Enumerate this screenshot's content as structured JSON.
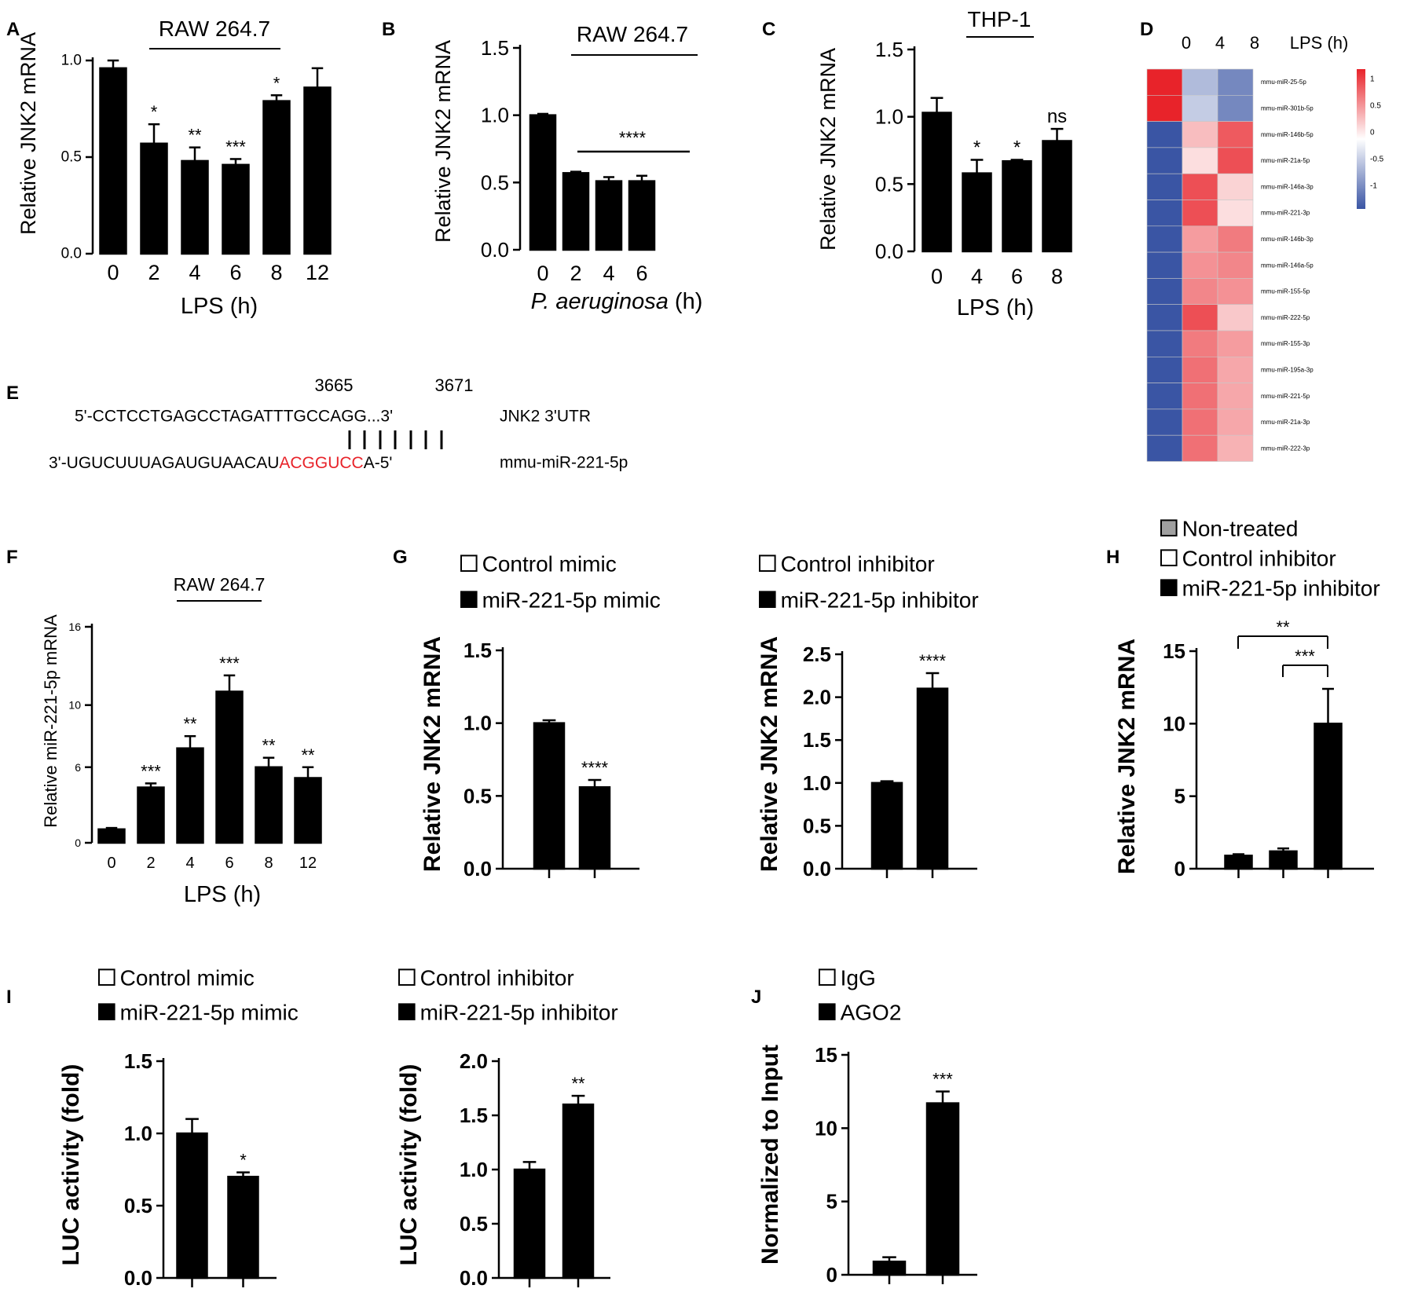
{
  "panels": {
    "A": {
      "letter": "A",
      "title": "RAW 264.7",
      "title_underline": true,
      "ylabel": "Relative  JNK2 mRNA",
      "xlabel": "LPS (h)",
      "ylim": [
        0,
        1.0
      ],
      "ticks": [
        "0.0",
        "0.5",
        "1.0"
      ],
      "tick_values": [
        0,
        0.5,
        1.0
      ],
      "bold": false
    },
    "B": {
      "letter": "B",
      "title": "RAW 264.7",
      "title_underline": true,
      "ylabel": "Relative  JNK2 mRNA",
      "xlabel_italic": "P. aeruginosa",
      "xlabel_rest": " (h)",
      "ylim": [
        0,
        1.5
      ],
      "ticks": [
        "0.0",
        "0.5",
        "1.0",
        "1.5"
      ],
      "tick_values": [
        0,
        0.5,
        1.0,
        1.5
      ],
      "sig_bracket": "****"
    },
    "C": {
      "letter": "C",
      "title": "THP-1",
      "title_underline": true,
      "ylabel": "Relative  JNK2 mRNA",
      "xlabel": "LPS (h)",
      "ylim": [
        0,
        1.5
      ],
      "ticks": [
        "0.0",
        "0.5",
        "1.0",
        "1.5"
      ],
      "tick_values": [
        0,
        0.5,
        1.0,
        1.5
      ]
    },
    "D": {
      "letter": "D",
      "col_labels": [
        "0",
        "4",
        "8",
        "LPS  (h)"
      ],
      "rows": [
        "mmu-miR-25-5p",
        "mmu-miR-301b-5p",
        "mmu-miR-146b-5p",
        "mmu-miR-21a-5p",
        "mmu-miR-146a-3p",
        "mmu-miR-221-3p",
        "mmu-miR-146b-3p",
        "mmu-miR-146a-5p",
        "mmu-miR-155-5p",
        "mmu-miR-222-5p",
        "mmu-miR-155-3p",
        "mmu-miR-195a-3p",
        "mmu-miR-221-5p",
        "mmu-miR-21a-3p",
        "mmu-miR-222-3p"
      ],
      "values": [
        [
          1,
          -0.4,
          -0.7
        ],
        [
          1,
          -0.3,
          -0.7
        ],
        [
          -1,
          0.3,
          0.75
        ],
        [
          -1,
          0.15,
          0.8
        ],
        [
          -1,
          0.8,
          0.2
        ],
        [
          -1,
          0.8,
          0.15
        ],
        [
          -1,
          0.45,
          0.6
        ],
        [
          -1,
          0.5,
          0.55
        ],
        [
          -1,
          0.55,
          0.5
        ],
        [
          -1,
          0.8,
          0.25
        ],
        [
          -1,
          0.6,
          0.45
        ],
        [
          -1,
          0.65,
          0.4
        ],
        [
          -1,
          0.65,
          0.4
        ],
        [
          -1,
          0.65,
          0.4
        ],
        [
          -1,
          0.65,
          0.35
        ]
      ],
      "scale_labels": [
        "1",
        "0.5",
        "0",
        "-0.5",
        "-1"
      ],
      "color_high": "#e8232a",
      "color_mid": "#ffffff",
      "color_low": "#3a55a4"
    },
    "E": {
      "letter": "E",
      "pos_left": "3665",
      "pos_right": "3671",
      "utr_seq": "5'-CCTCCTGAGCCTAGATTTGCCAGG...3'",
      "utr_label": "JNK2   3'UTR",
      "mir_prefix": "3'-UGUCUUUAGAUGUAACAU",
      "mir_seed": "ACGGUCC",
      "mir_suffix": "A-5'",
      "mir_label": "mmu-miR-221-5p",
      "seed_color": "#e8232a"
    },
    "F": {
      "letter": "F",
      "title": "RAW 264.7",
      "title_underline": true,
      "ylabel": "Relative  miR-221-5p  mRNA",
      "xlabel": "LPS (h)",
      "ylim": [
        0,
        16
      ],
      "ticks": [
        "0",
        "6",
        "10",
        "16"
      ],
      "tick_values": [
        0,
        5.6,
        10.2,
        16
      ]
    },
    "G": {
      "letter": "G",
      "ylabel": "Relative JNK2 mRNA",
      "left": {
        "legend": [
          "Control mimic",
          "miR-221-5p  mimic"
        ],
        "ylim": [
          0,
          1.5
        ],
        "ticks": [
          "0.0",
          "0.5",
          "1.0",
          "1.5"
        ],
        "tick_values": [
          0,
          0.5,
          1.0,
          1.5
        ]
      },
      "right": {
        "legend": [
          "Control inhibitor",
          "miR-221-5p  inhibitor"
        ],
        "ylim": [
          0,
          2.5
        ],
        "ticks": [
          "0.0",
          "0.5",
          "1.0",
          "1.5",
          "2.0",
          "2.5"
        ],
        "tick_values": [
          0,
          0.5,
          1.0,
          1.5,
          2.0,
          2.5
        ]
      }
    },
    "H": {
      "letter": "H",
      "ylabel": "Relative JNK2 mRNA",
      "legend": [
        "Non-treated",
        "Control inhibitor",
        "miR-221-5p  inhibitor"
      ],
      "ylim": [
        0,
        15
      ],
      "ticks": [
        "0",
        "5",
        "10",
        "15"
      ],
      "tick_values": [
        0,
        5,
        10,
        15
      ],
      "brackets": [
        "**",
        "***"
      ]
    },
    "I": {
      "letter": "I",
      "ylabel": "LUC activity (fold)",
      "left": {
        "legend": [
          "Control mimic",
          "miR-221-5p  mimic"
        ],
        "ylim": [
          0,
          1.5
        ],
        "ticks": [
          "0.0",
          "0.5",
          "1.0",
          "1.5"
        ],
        "tick_values": [
          0,
          0.5,
          1.0,
          1.5
        ]
      },
      "right": {
        "legend": [
          "Control inhibitor",
          "miR-221-5p  inhibitor"
        ],
        "ylim": [
          0,
          2.0
        ],
        "ticks": [
          "0.0",
          "0.5",
          "1.0",
          "1.5",
          "2.0"
        ],
        "tick_values": [
          0,
          0.5,
          1.0,
          1.5,
          2.0
        ]
      }
    },
    "J": {
      "letter": "J",
      "ylabel": "Normalized to Input",
      "legend": [
        "IgG",
        "AGO2"
      ],
      "ylim": [
        0,
        15
      ],
      "ticks": [
        "0",
        "5",
        "10",
        "15"
      ],
      "tick_values": [
        0,
        5,
        10,
        15
      ]
    }
  },
  "chart_data": [
    {
      "id": "A",
      "type": "bar",
      "categories": [
        "0",
        "2",
        "4",
        "6",
        "8",
        "12"
      ],
      "values": [
        0.96,
        0.57,
        0.48,
        0.46,
        0.79,
        0.86
      ],
      "errors": [
        0.04,
        0.1,
        0.07,
        0.03,
        0.03,
        0.1
      ],
      "sig": [
        "",
        "*",
        "**",
        "***",
        "*",
        ""
      ],
      "title": "RAW 264.7",
      "xlabel": "LPS (h)",
      "ylabel": "Relative  JNK2 mRNA",
      "ylim": [
        0,
        1.0
      ]
    },
    {
      "id": "B",
      "type": "bar",
      "categories": [
        "0",
        "2",
        "4",
        "6"
      ],
      "values": [
        1.0,
        0.57,
        0.51,
        0.51
      ],
      "errors": [
        0.01,
        0.01,
        0.03,
        0.04
      ],
      "sig": [
        "",
        "",
        "",
        ""
      ],
      "title": "RAW 264.7",
      "xlabel": "P. aeruginosa (h)",
      "ylabel": "Relative  JNK2 mRNA",
      "ylim": [
        0,
        1.5
      ]
    },
    {
      "id": "C",
      "type": "bar",
      "categories": [
        "0",
        "4",
        "6",
        "8"
      ],
      "values": [
        1.03,
        0.58,
        0.67,
        0.82
      ],
      "errors": [
        0.11,
        0.1,
        0.01,
        0.09
      ],
      "sig": [
        "",
        "*",
        "*",
        "ns"
      ],
      "title": "THP-1",
      "xlabel": "LPS (h)",
      "ylabel": "Relative  JNK2 mRNA",
      "ylim": [
        0,
        1.5
      ]
    },
    {
      "id": "D",
      "type": "heatmap",
      "columns": [
        "0",
        "4",
        "8"
      ],
      "rows": [
        "mmu-miR-25-5p",
        "mmu-miR-301b-5p",
        "mmu-miR-146b-5p",
        "mmu-miR-21a-5p",
        "mmu-miR-146a-3p",
        "mmu-miR-221-3p",
        "mmu-miR-146b-3p",
        "mmu-miR-146a-5p",
        "mmu-miR-155-5p",
        "mmu-miR-222-5p",
        "mmu-miR-155-3p",
        "mmu-miR-195a-3p",
        "mmu-miR-221-5p",
        "mmu-miR-21a-3p",
        "mmu-miR-222-3p"
      ],
      "range": [
        -1,
        1
      ]
    },
    {
      "id": "F",
      "type": "bar",
      "categories": [
        "0",
        "2",
        "4",
        "6",
        "8",
        "12"
      ],
      "values": [
        1.0,
        4.1,
        7.0,
        11.2,
        5.6,
        4.8
      ],
      "errors": [
        0.1,
        0.3,
        0.9,
        1.2,
        0.7,
        0.8
      ],
      "sig": [
        "",
        "***",
        "**",
        "***",
        "**",
        "**"
      ],
      "title": "RAW 264.7",
      "xlabel": "LPS (h)",
      "ylabel": "Relative  miR-221-5p  mRNA",
      "ylim": [
        0,
        16
      ]
    },
    {
      "id": "G-left",
      "type": "bar",
      "categories": [
        "Control mimic",
        "miR-221-5p  mimic"
      ],
      "values": [
        1.0,
        0.56
      ],
      "errors": [
        0.02,
        0.05
      ],
      "sig": [
        "",
        "****"
      ],
      "ylabel": "Relative JNK2 mRNA",
      "ylim": [
        0,
        1.5
      ]
    },
    {
      "id": "G-right",
      "type": "bar",
      "categories": [
        "Control inhibitor",
        "miR-221-5p  inhibitor"
      ],
      "values": [
        1.0,
        2.1
      ],
      "errors": [
        0.02,
        0.18
      ],
      "sig": [
        "",
        "****"
      ],
      "ylabel": "Relative JNK2 mRNA",
      "ylim": [
        0,
        2.5
      ]
    },
    {
      "id": "H",
      "type": "bar",
      "categories": [
        "Non-treated",
        "Control inhibitor",
        "miR-221-5p  inhibitor"
      ],
      "values": [
        0.9,
        1.2,
        10.0
      ],
      "errors": [
        0.1,
        0.2,
        2.4
      ],
      "sig": [
        "",
        "",
        ""
      ],
      "ylabel": "Relative JNK2 mRNA",
      "ylim": [
        0,
        15
      ]
    },
    {
      "id": "I-left",
      "type": "bar",
      "categories": [
        "Control mimic",
        "miR-221-5p  mimic"
      ],
      "values": [
        1.0,
        0.7
      ],
      "errors": [
        0.1,
        0.03
      ],
      "sig": [
        "",
        "*"
      ],
      "ylabel": "LUC activity (fold)",
      "ylim": [
        0,
        1.5
      ]
    },
    {
      "id": "I-right",
      "type": "bar",
      "categories": [
        "Control inhibitor",
        "miR-221-5p  inhibitor"
      ],
      "values": [
        1.0,
        1.6
      ],
      "errors": [
        0.07,
        0.08
      ],
      "sig": [
        "",
        "**"
      ],
      "ylabel": "LUC activity (fold)",
      "ylim": [
        0,
        2.0
      ]
    },
    {
      "id": "J",
      "type": "bar",
      "categories": [
        "IgG",
        "AGO2"
      ],
      "values": [
        0.9,
        11.7
      ],
      "errors": [
        0.3,
        0.8
      ],
      "sig": [
        "",
        "***"
      ],
      "ylabel": "Normalized to Input",
      "ylim": [
        0,
        15
      ]
    }
  ]
}
